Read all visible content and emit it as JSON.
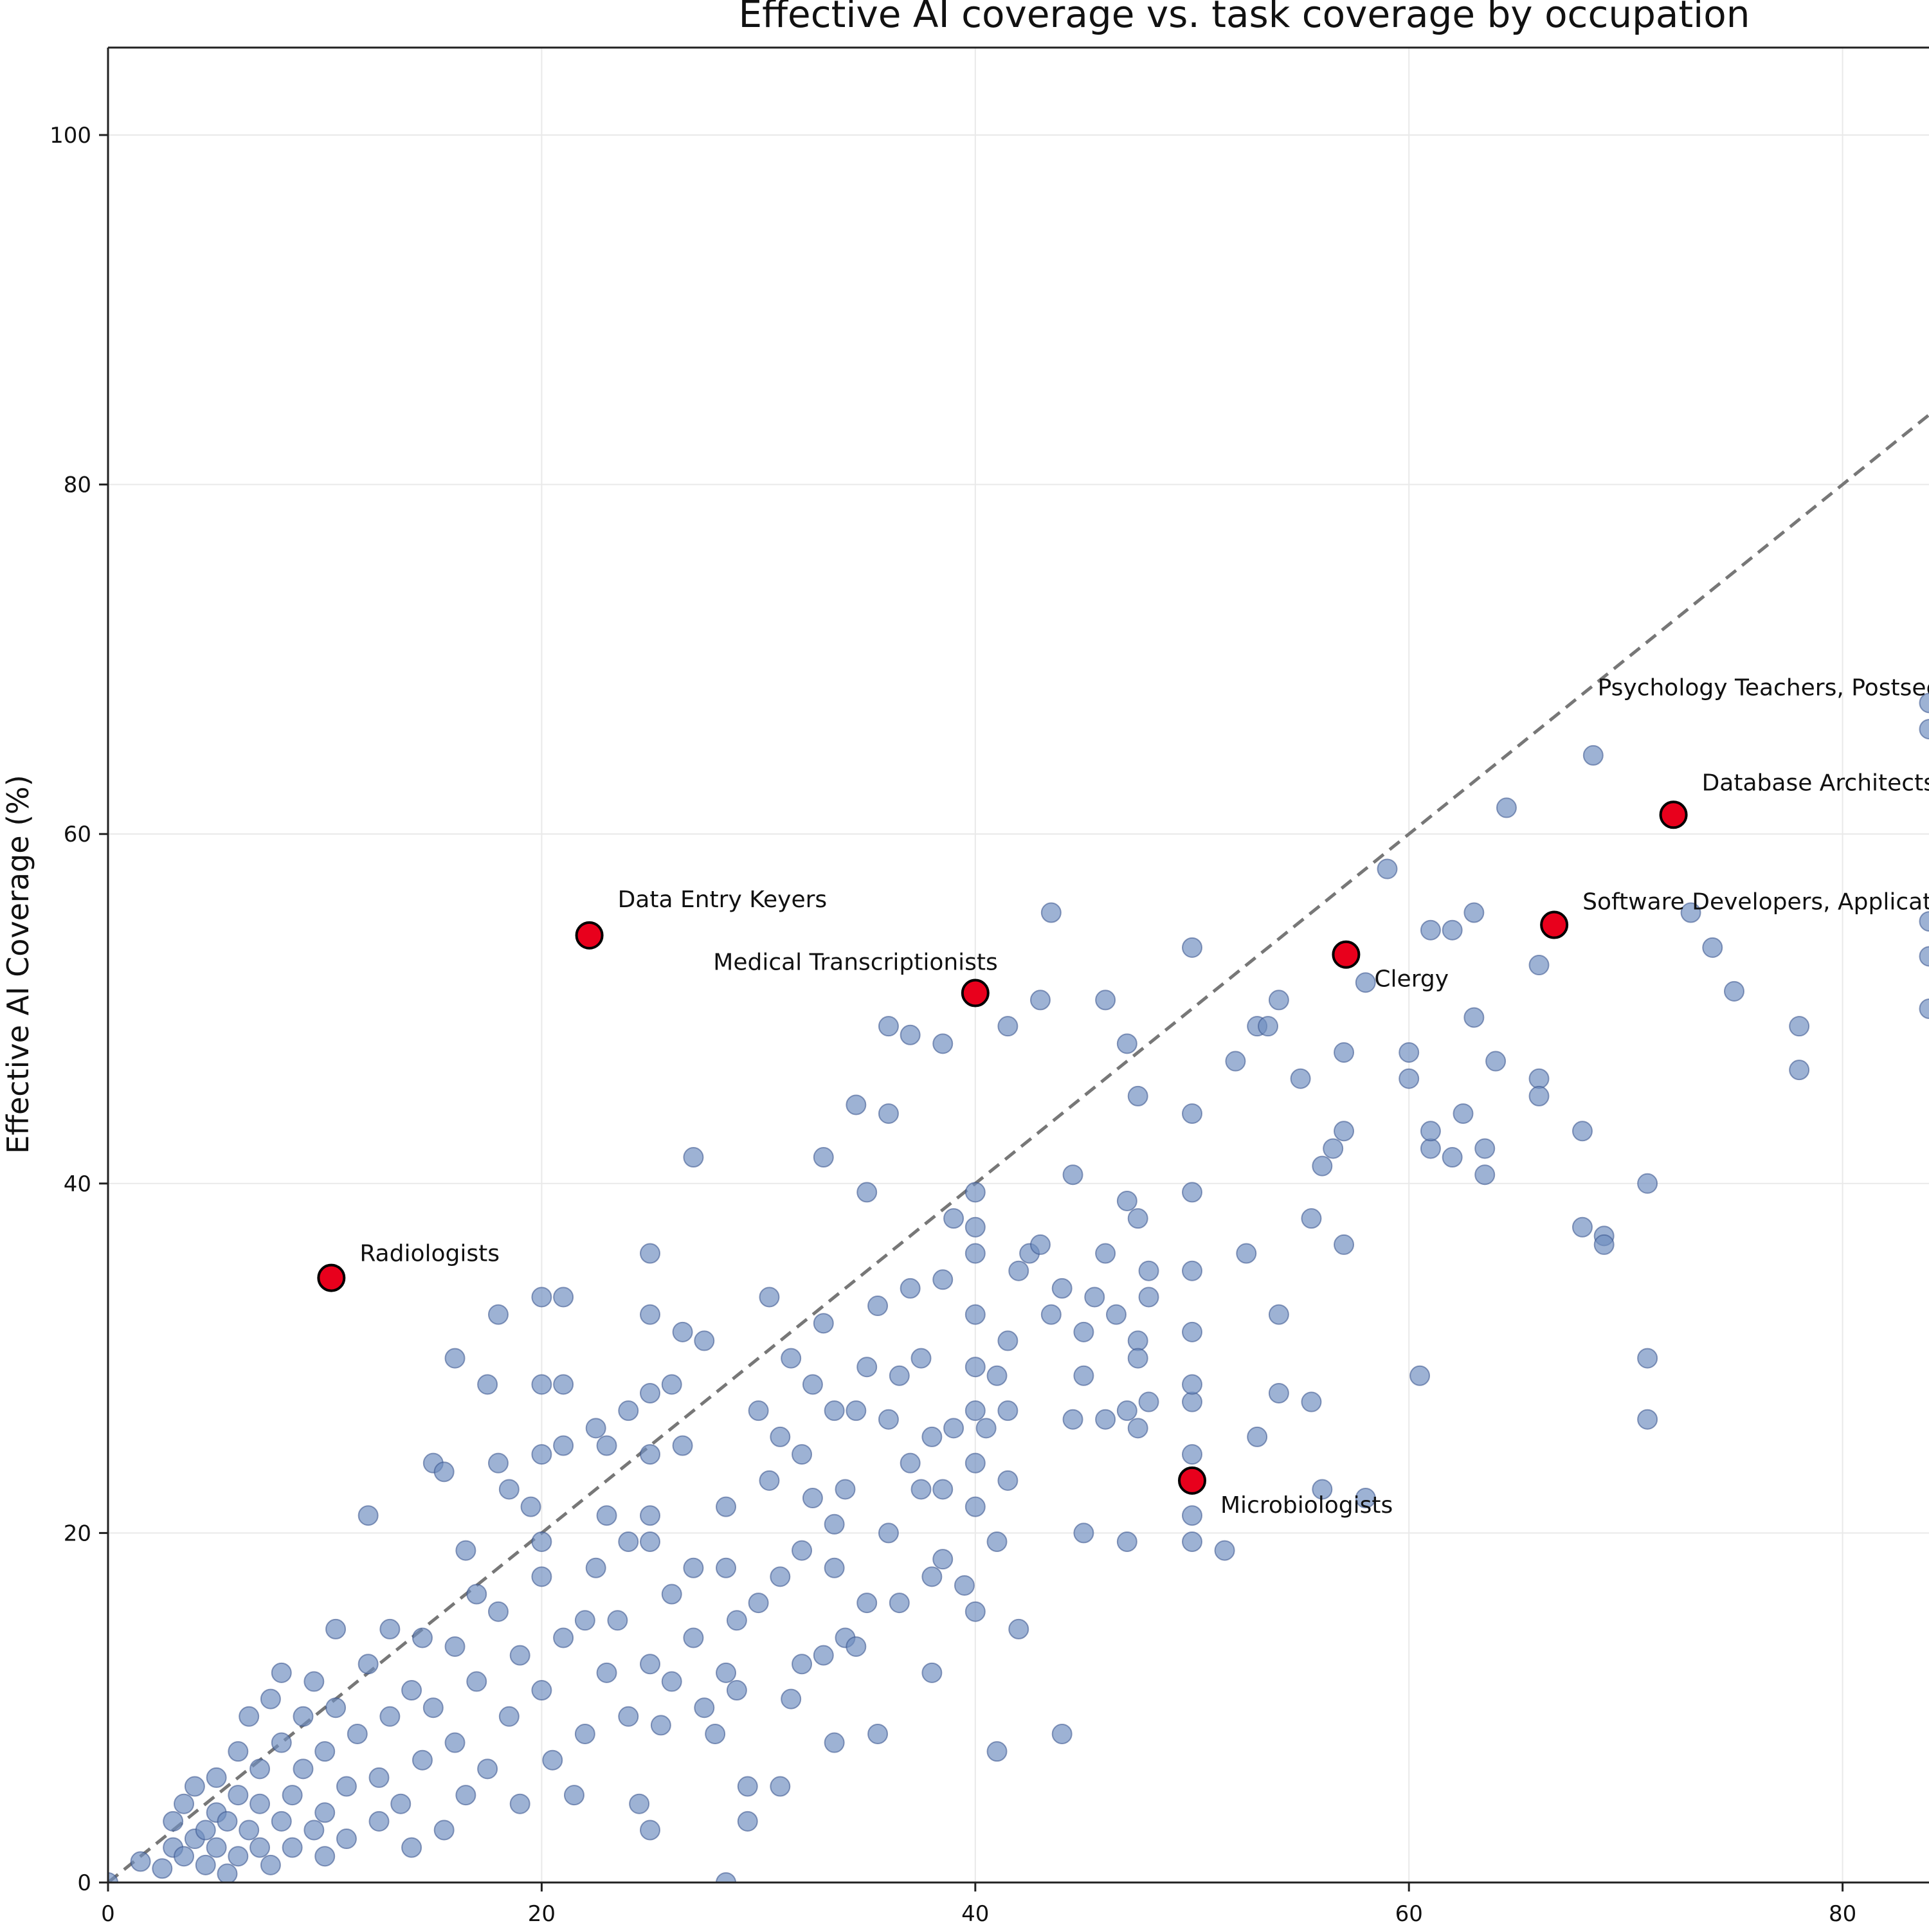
{
  "chart_data": {
    "type": "scatter",
    "title": "Effective AI coverage vs. task coverage by occupation",
    "xlabel": "",
    "ylabel": "Effective AI Coverage (%)",
    "xlim": [
      0,
      84
    ],
    "ylim": [
      0,
      105
    ],
    "xticks": [
      "0",
      "20",
      "40",
      "60",
      "80"
    ],
    "yticks": [
      "0",
      "20",
      "40",
      "60",
      "80",
      "100"
    ],
    "xtick_values": [
      0,
      20,
      40,
      60,
      80
    ],
    "ytick_values": [
      0,
      20,
      40,
      60,
      80,
      100
    ],
    "grid": true,
    "reference_line": {
      "style": "dashed",
      "from": [
        0,
        0
      ],
      "to": [
        84,
        84
      ]
    },
    "colors": {
      "points": "#6f8dbf",
      "points_edge": "#34508a",
      "highlight": "#e8001c",
      "highlight_edge": "#000000",
      "reference_line": "#777777",
      "grid": "#e9e9e9"
    },
    "series": [
      {
        "points": [
          [
            0,
            0
          ],
          [
            1.5,
            1.2
          ],
          [
            2.5,
            0.8
          ],
          [
            3,
            2
          ],
          [
            3,
            3.5
          ],
          [
            3.5,
            1.5
          ],
          [
            3.5,
            4.5
          ],
          [
            4,
            2.5
          ],
          [
            4,
            5.5
          ],
          [
            4.5,
            3
          ],
          [
            4.5,
            1
          ],
          [
            5,
            4
          ],
          [
            5,
            2
          ],
          [
            5,
            6
          ],
          [
            5.5,
            3.5
          ],
          [
            5.5,
            0.5
          ],
          [
            6,
            5
          ],
          [
            6,
            1.5
          ],
          [
            6,
            7.5
          ],
          [
            6.5,
            3
          ],
          [
            6.5,
            9.5
          ],
          [
            7,
            4.5
          ],
          [
            7,
            2
          ],
          [
            7,
            6.5
          ],
          [
            7.5,
            10.5
          ],
          [
            7.5,
            1
          ],
          [
            8,
            3.5
          ],
          [
            8,
            8
          ],
          [
            8,
            12
          ],
          [
            8.5,
            5
          ],
          [
            8.5,
            2
          ],
          [
            9,
            6.5
          ],
          [
            9,
            9.5
          ],
          [
            9.5,
            3
          ],
          [
            9.5,
            11.5
          ],
          [
            10,
            4
          ],
          [
            10,
            7.5
          ],
          [
            10,
            1.5
          ],
          [
            10.5,
            10
          ],
          [
            10.5,
            14.5
          ],
          [
            11,
            5.5
          ],
          [
            11,
            2.5
          ],
          [
            11.5,
            8.5
          ],
          [
            12,
            12.5
          ],
          [
            12,
            21
          ],
          [
            12.5,
            3.5
          ],
          [
            12.5,
            6
          ],
          [
            13,
            9.5
          ],
          [
            13,
            14.5
          ],
          [
            13.5,
            4.5
          ],
          [
            14,
            11
          ],
          [
            14,
            2
          ],
          [
            14.5,
            7
          ],
          [
            14.5,
            14
          ],
          [
            15,
            10
          ],
          [
            15,
            24
          ],
          [
            15.5,
            3
          ],
          [
            15.5,
            23.5
          ],
          [
            16,
            8
          ],
          [
            16,
            13.5
          ],
          [
            16,
            30
          ],
          [
            16.5,
            5
          ],
          [
            16.5,
            19
          ],
          [
            17,
            11.5
          ],
          [
            17,
            16.5
          ],
          [
            17.5,
            28.5
          ],
          [
            17.5,
            6.5
          ],
          [
            18,
            15.5
          ],
          [
            18,
            24
          ],
          [
            18,
            32.5
          ],
          [
            18.5,
            9.5
          ],
          [
            18.5,
            22.5
          ],
          [
            19,
            13
          ],
          [
            19,
            4.5
          ],
          [
            19.5,
            21.5
          ],
          [
            20,
            17.5
          ],
          [
            20,
            28.5
          ],
          [
            20,
            33.5
          ],
          [
            20,
            24.5
          ],
          [
            20,
            19.5
          ],
          [
            20,
            11
          ],
          [
            20.5,
            7
          ],
          [
            21,
            14
          ],
          [
            21,
            25
          ],
          [
            21,
            28.5
          ],
          [
            21,
            33.5
          ],
          [
            21.5,
            5
          ],
          [
            22,
            15
          ],
          [
            22,
            8.5
          ],
          [
            22.5,
            26
          ],
          [
            22.5,
            18
          ],
          [
            23,
            12
          ],
          [
            23,
            21
          ],
          [
            23,
            25
          ],
          [
            23.5,
            15
          ],
          [
            24,
            9.5
          ],
          [
            24,
            19.5
          ],
          [
            24,
            27
          ],
          [
            24.5,
            4.5
          ],
          [
            25,
            12.5
          ],
          [
            25,
            19.5
          ],
          [
            25,
            21
          ],
          [
            25,
            24.5
          ],
          [
            25,
            28
          ],
          [
            25,
            32.5
          ],
          [
            25,
            36
          ],
          [
            25,
            3
          ],
          [
            25.5,
            9
          ],
          [
            26,
            11.5
          ],
          [
            26,
            16.5
          ],
          [
            26,
            28.5
          ],
          [
            26.5,
            25
          ],
          [
            26.5,
            31.5
          ],
          [
            27,
            14
          ],
          [
            27,
            18
          ],
          [
            27,
            41.5
          ],
          [
            27.5,
            31
          ],
          [
            27.5,
            10
          ],
          [
            28,
            8.5
          ],
          [
            28.5,
            12
          ],
          [
            28.5,
            18
          ],
          [
            28.5,
            21.5
          ],
          [
            28.5,
            0
          ],
          [
            29,
            11
          ],
          [
            29,
            15
          ],
          [
            29.5,
            5.5
          ],
          [
            29.5,
            3.5
          ],
          [
            30,
            27
          ],
          [
            30,
            16
          ],
          [
            30.5,
            23
          ],
          [
            30.5,
            33.5
          ],
          [
            31,
            25.5
          ],
          [
            31,
            17.5
          ],
          [
            31,
            5.5
          ],
          [
            31.5,
            30
          ],
          [
            31.5,
            10.5
          ],
          [
            32,
            24.5
          ],
          [
            32,
            12.5
          ],
          [
            32,
            19
          ],
          [
            32.5,
            28.5
          ],
          [
            32.5,
            22
          ],
          [
            33,
            13
          ],
          [
            33,
            32
          ],
          [
            33,
            41.5
          ],
          [
            33.5,
            18
          ],
          [
            33.5,
            20.5
          ],
          [
            33.5,
            8
          ],
          [
            33.5,
            27
          ],
          [
            34,
            14
          ],
          [
            34,
            22.5
          ],
          [
            34.5,
            27
          ],
          [
            34.5,
            44.5
          ],
          [
            34.5,
            13.5
          ],
          [
            35,
            39.5
          ],
          [
            35,
            29.5
          ],
          [
            35,
            16
          ],
          [
            35.5,
            33
          ],
          [
            35.5,
            8.5
          ],
          [
            36,
            20
          ],
          [
            36,
            26.5
          ],
          [
            36,
            44
          ],
          [
            36,
            49
          ],
          [
            36.5,
            29
          ],
          [
            36.5,
            16
          ],
          [
            37,
            24
          ],
          [
            37,
            34
          ],
          [
            37,
            48.5
          ],
          [
            37.5,
            22.5
          ],
          [
            37.5,
            30
          ],
          [
            38,
            17.5
          ],
          [
            38,
            12
          ],
          [
            38,
            25.5
          ],
          [
            38.5,
            18.5
          ],
          [
            38.5,
            22.5
          ],
          [
            38.5,
            34.5
          ],
          [
            38.5,
            48
          ],
          [
            39,
            26
          ],
          [
            39,
            38
          ],
          [
            39.5,
            17
          ],
          [
            40,
            15.5
          ],
          [
            40,
            21.5
          ],
          [
            40,
            24
          ],
          [
            40,
            27
          ],
          [
            40,
            29.5
          ],
          [
            40,
            32.5
          ],
          [
            40,
            36
          ],
          [
            40,
            37.5
          ],
          [
            40,
            39.5
          ],
          [
            40.5,
            26
          ],
          [
            41,
            19.5
          ],
          [
            41,
            29
          ],
          [
            41,
            7.5
          ],
          [
            41.5,
            31
          ],
          [
            41.5,
            27
          ],
          [
            41.5,
            23
          ],
          [
            41.5,
            49
          ],
          [
            42,
            14.5
          ],
          [
            42,
            35
          ],
          [
            42.5,
            36
          ],
          [
            43,
            36.5
          ],
          [
            43,
            50.5
          ],
          [
            43.5,
            55.5
          ],
          [
            43.5,
            32.5
          ],
          [
            44,
            8.5
          ],
          [
            44,
            34
          ],
          [
            44.5,
            26.5
          ],
          [
            44.5,
            40.5
          ],
          [
            45,
            31.5
          ],
          [
            45,
            29
          ],
          [
            45,
            20
          ],
          [
            45.5,
            33.5
          ],
          [
            46,
            36
          ],
          [
            46,
            26.5
          ],
          [
            46,
            50.5
          ],
          [
            46.5,
            32.5
          ],
          [
            47,
            27
          ],
          [
            47,
            19.5
          ],
          [
            47,
            39
          ],
          [
            47,
            48
          ],
          [
            47.5,
            45
          ],
          [
            47.5,
            38
          ],
          [
            47.5,
            31
          ],
          [
            47.5,
            30
          ],
          [
            47.5,
            26
          ],
          [
            48,
            33.5
          ],
          [
            48,
            27.5
          ],
          [
            48,
            35
          ],
          [
            50,
            19.5
          ],
          [
            50,
            21
          ],
          [
            50,
            24.5
          ],
          [
            50,
            27.5
          ],
          [
            50,
            28.5
          ],
          [
            50,
            31.5
          ],
          [
            50,
            35
          ],
          [
            50,
            39.5
          ],
          [
            50,
            44
          ],
          [
            50,
            53.5
          ],
          [
            51.5,
            19
          ],
          [
            52,
            47
          ],
          [
            52.5,
            36
          ],
          [
            53,
            25.5
          ],
          [
            53,
            49
          ],
          [
            53.5,
            49
          ],
          [
            54,
            28
          ],
          [
            54,
            32.5
          ],
          [
            54,
            50.5
          ],
          [
            55,
            46
          ],
          [
            55.5,
            27.5
          ],
          [
            55.5,
            38
          ],
          [
            56,
            22.5
          ],
          [
            56,
            41
          ],
          [
            56.5,
            42
          ],
          [
            57,
            47.5
          ],
          [
            57,
            43
          ],
          [
            57,
            36.5
          ],
          [
            58,
            51.5
          ],
          [
            58,
            22
          ],
          [
            59,
            58
          ],
          [
            60,
            46
          ],
          [
            60,
            47.5
          ],
          [
            60.5,
            29
          ],
          [
            61,
            42
          ],
          [
            61,
            43
          ],
          [
            61,
            54.5
          ],
          [
            62,
            41.5
          ],
          [
            62,
            54.5
          ],
          [
            62.5,
            44
          ],
          [
            63,
            49.5
          ],
          [
            63,
            55.5
          ],
          [
            63.5,
            42
          ],
          [
            63.5,
            40.5
          ],
          [
            64,
            47
          ],
          [
            64.5,
            61.5
          ],
          [
            66,
            52.5
          ],
          [
            66,
            46
          ],
          [
            66,
            45
          ],
          [
            68,
            43
          ],
          [
            68,
            37.5
          ],
          [
            68.5,
            64.5
          ],
          [
            69,
            37
          ],
          [
            69,
            36.5
          ],
          [
            71,
            30
          ],
          [
            71,
            26.5
          ],
          [
            71,
            40
          ],
          [
            73,
            55.5
          ],
          [
            74,
            53.5
          ],
          [
            75,
            51
          ],
          [
            78,
            49
          ],
          [
            78,
            46.5
          ],
          [
            84,
            50
          ],
          [
            84,
            53
          ],
          [
            84,
            55
          ],
          [
            84,
            66
          ],
          [
            84,
            67.5
          ]
        ]
      }
    ],
    "highlighted": [
      {
        "label": "Radiologists",
        "x": 10.3,
        "y": 34.6
      },
      {
        "label": "Data Entry Keyers",
        "x": 22.2,
        "y": 54.2
      },
      {
        "label": "Medical Transcriptionists",
        "x": 40,
        "y": 50.9
      },
      {
        "label": "Clergy",
        "x": 57.1,
        "y": 53.1
      },
      {
        "label": "Microbiologists",
        "x": 50,
        "y": 23
      },
      {
        "label": "Software Developers, Applications",
        "x": 66.7,
        "y": 54.8
      },
      {
        "label": "Database Architects",
        "x": 72.2,
        "y": 61.1
      }
    ],
    "annotations": [
      {
        "text": "Psychology Teachers, Postsecondary",
        "x": 68.7,
        "y": 67.5
      }
    ]
  }
}
